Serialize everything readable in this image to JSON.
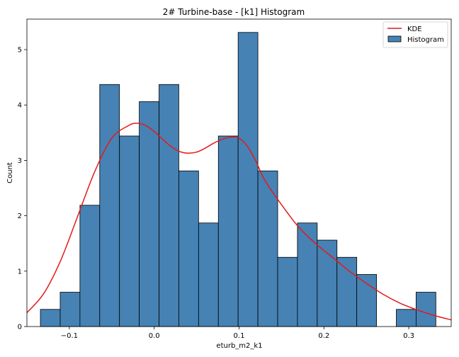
{
  "chart_data": {
    "type": "histogram",
    "title": "2# Turbine-base - [k1] Histogram",
    "xlabel": "eturb_m2_k1",
    "ylabel": "Count",
    "xlim": [
      -0.15,
      0.35
    ],
    "ylim": [
      0,
      5.55
    ],
    "x_ticks": [
      -0.1,
      0.0,
      0.1,
      0.2,
      0.3
    ],
    "x_tick_labels": [
      "−0.1",
      "0.0",
      "0.1",
      "0.2",
      "0.3"
    ],
    "y_ticks": [
      0,
      1,
      2,
      3,
      4,
      5
    ],
    "y_tick_labels": [
      "0",
      "1",
      "2",
      "3",
      "4",
      "5"
    ],
    "grid": false,
    "legend_position": "top-right",
    "histogram": {
      "name": "Histogram",
      "color": "#4682b4",
      "edgecolor": "#000000",
      "bin_edges": [
        -0.1341,
        -0.1108,
        -0.0875,
        -0.0642,
        -0.0409,
        -0.0176,
        0.0057,
        0.029,
        0.0523,
        0.0756,
        0.0989,
        0.1222,
        0.1455,
        0.1688,
        0.1921,
        0.2154,
        0.2387,
        0.262,
        0.2853,
        0.3086,
        0.3319
      ],
      "values": [
        0.31,
        0.62,
        2.19,
        4.37,
        3.44,
        4.06,
        4.37,
        2.81,
        1.87,
        3.44,
        5.31,
        2.81,
        1.25,
        1.87,
        1.56,
        1.25,
        0.94,
        0.0,
        0.31,
        0.62
      ]
    },
    "kde": {
      "name": "KDE",
      "color": "#e41a1c",
      "x": [
        -0.15,
        -0.13,
        -0.11,
        -0.09,
        -0.07,
        -0.05,
        -0.03,
        -0.02,
        -0.01,
        0.0,
        0.01,
        0.02,
        0.03,
        0.04,
        0.05,
        0.06,
        0.07,
        0.08,
        0.09,
        0.1,
        0.11,
        0.12,
        0.13,
        0.15,
        0.17,
        0.19,
        0.21,
        0.23,
        0.25,
        0.27,
        0.29,
        0.31,
        0.33,
        0.35
      ],
      "y": [
        0.25,
        0.6,
        1.2,
        2.0,
        2.8,
        3.4,
        3.63,
        3.67,
        3.63,
        3.52,
        3.38,
        3.25,
        3.16,
        3.13,
        3.15,
        3.22,
        3.31,
        3.38,
        3.42,
        3.4,
        3.25,
        2.98,
        2.65,
        2.2,
        1.8,
        1.5,
        1.25,
        1.0,
        0.78,
        0.58,
        0.42,
        0.3,
        0.2,
        0.12
      ]
    }
  }
}
